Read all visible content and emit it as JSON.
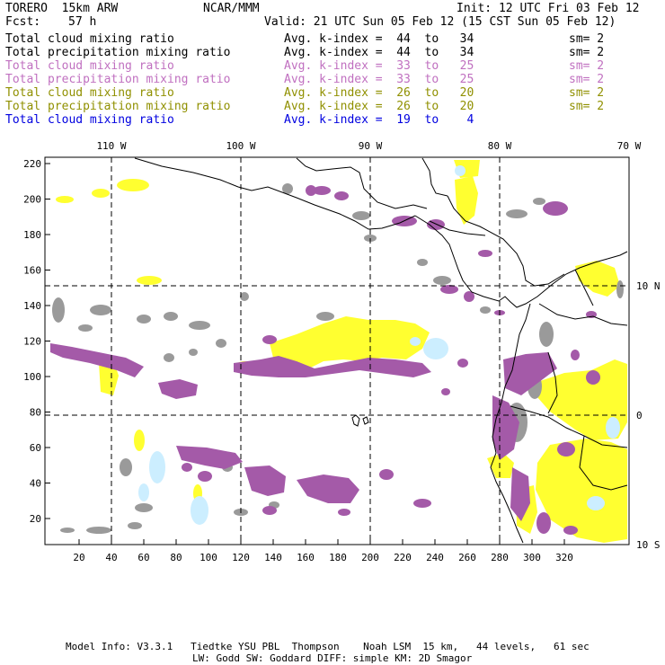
{
  "header": {
    "model_name": "TORERO  15km ARW",
    "org": "NCAR/MMM",
    "init": "Init: 12 UTC Fri 03 Feb 12",
    "fcst_label": "Fcst:",
    "fcst_value": "57 h",
    "valid": "Valid: 21 UTC Sun 05 Feb 12 (15 CST Sun 05 Feb 12)"
  },
  "legend": [
    {
      "field": "Total cloud mixing ratio",
      "kindex": "Avg. k-index =  44  to   34",
      "sm": "sm= 2",
      "color": "#000000"
    },
    {
      "field": "Total precipitation mixing ratio",
      "kindex": "Avg. k-index =  44  to   34",
      "sm": "sm= 2",
      "color": "#000000"
    },
    {
      "field": "Total cloud mixing ratio",
      "kindex": "Avg. k-index =  33  to   25",
      "sm": "sm= 2",
      "color": "#c070c0"
    },
    {
      "field": "Total precipitation mixing ratio",
      "kindex": "Avg. k-index =  33  to   25",
      "sm": "sm= 2",
      "color": "#c070c0"
    },
    {
      "field": "Total cloud mixing ratio",
      "kindex": "Avg. k-index =  26  to   20",
      "sm": "sm= 2",
      "color": "#909000"
    },
    {
      "field": "Total precipitation mixing ratio",
      "kindex": "Avg. k-index =  26  to   20",
      "sm": "sm= 2",
      "color": "#909000"
    },
    {
      "field": "Total cloud mixing ratio",
      "kindex": "Avg. k-index =  19  to    4",
      "sm": "",
      "color": "#0000e0"
    }
  ],
  "map": {
    "lon_labels": [
      "110 W",
      "100 W",
      "90 W",
      "80 W",
      "70 W"
    ],
    "lat_labels": [
      "10 N",
      "0",
      "10 S"
    ],
    "x_ticks": [
      "20",
      "40",
      "60",
      "80",
      "100",
      "120",
      "140",
      "160",
      "180",
      "200",
      "220",
      "240",
      "260",
      "280",
      "300",
      "320"
    ],
    "y_ticks": [
      "220",
      "200",
      "180",
      "160",
      "140",
      "120",
      "100",
      "80",
      "60",
      "40",
      "20"
    ],
    "colors": {
      "gray": "#9a9a9a",
      "purple": "#a45aa8",
      "yellow": "#ffff30",
      "lightblue": "#cceeff",
      "coast": "#000000"
    }
  },
  "footer": {
    "line1": "Model Info: V3.3.1   Tiedtke YSU PBL  Thompson    Noah LSM  15 km,   44 levels,   61 sec",
    "line2": "LW: Godd SW: Goddard DIFF: simple KM: 2D Smagor"
  }
}
